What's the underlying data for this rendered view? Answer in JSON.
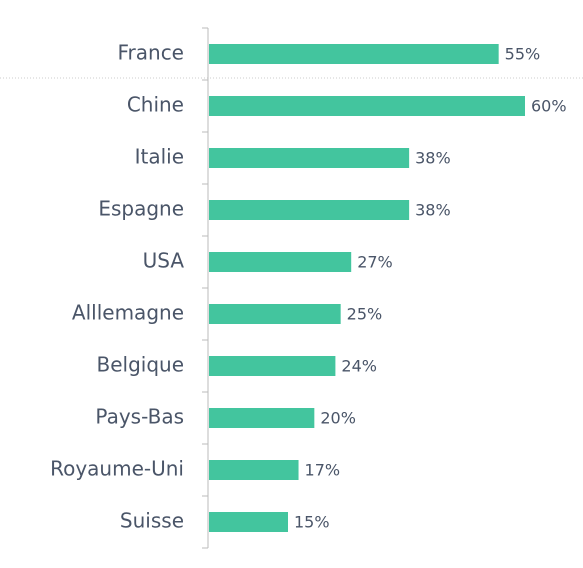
{
  "chart_data": {
    "type": "bar",
    "categories": [
      "France",
      "Chine",
      "Italie",
      "Espagne",
      "USA",
      "Alllemagne",
      "Belgique",
      "Pays-Bas",
      "Royaume-Uni",
      "Suisse"
    ],
    "values": [
      55,
      60,
      38,
      38,
      27,
      25,
      24,
      20,
      17,
      15
    ],
    "value_labels": [
      "55%",
      "60%",
      "38%",
      "38%",
      "27%",
      "25%",
      "24%",
      "20%",
      "17%",
      "15%"
    ],
    "color": "#43c59e"
  }
}
